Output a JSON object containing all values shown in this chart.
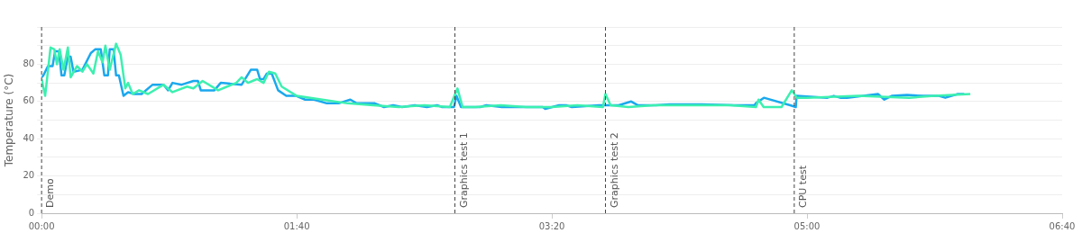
{
  "chart_data": {
    "type": "line",
    "ylabel": "Temperature (°C)",
    "xlim": [
      0,
      400
    ],
    "xticks": [
      {
        "value": 0,
        "label": "00:00"
      },
      {
        "value": 100,
        "label": "01:40"
      },
      {
        "value": 200,
        "label": "03:20"
      },
      {
        "value": 300,
        "label": "05:00"
      },
      {
        "value": 400,
        "label": "06:40"
      }
    ],
    "ylim": [
      0,
      100
    ],
    "yticks": [
      0,
      {
        "value": 10,
        "label": null
      },
      20,
      {
        "value": 30,
        "label": null
      },
      40,
      {
        "value": 50,
        "label": null
      },
      60,
      {
        "value": 70,
        "label": null
      },
      80,
      {
        "value": 90,
        "label": null
      },
      {
        "value": 100,
        "label": null
      }
    ],
    "grid": "y",
    "legend": false,
    "marker": "none",
    "line_style": "solid",
    "series": [
      {
        "color": "#3cf0b0",
        "x": [
          0,
          1.4,
          3.5,
          5,
          6,
          7.1,
          8.6,
          10.3,
          11.4,
          13.9,
          16,
          17.8,
          20.3,
          22.1,
          23.9,
          25,
          26.7,
          29.2,
          31,
          32.8,
          33.9,
          35.7,
          38.2,
          41.7,
          47.8,
          51.3,
          57,
          59.5,
          63.1,
          69.2,
          72.7,
          76.3,
          78.4,
          80.9,
          82.7,
          84.5,
          87,
          89.1,
          91.6,
          94.1,
          100,
          110,
          120,
          130,
          140,
          150,
          160,
          163,
          165,
          170,
          180,
          190,
          200,
          210,
          220,
          221,
          223,
          230,
          240,
          250,
          260,
          270,
          280,
          281,
          283,
          290,
          294,
          296,
          300,
          320,
          340,
          350,
          364
        ],
        "values": [
          72,
          63,
          89,
          88,
          80,
          88,
          77,
          89,
          73,
          79,
          76,
          80,
          75,
          87,
          81,
          90,
          77,
          91,
          85,
          67,
          70,
          64,
          66,
          64,
          69,
          65,
          68,
          67,
          71,
          66,
          68,
          70,
          73,
          70,
          71,
          72,
          70,
          76,
          75,
          68,
          63,
          61,
          59,
          58,
          57,
          58,
          57,
          67,
          57,
          57,
          58,
          57,
          57,
          58,
          57,
          64,
          58,
          57,
          58,
          58,
          58,
          58,
          57,
          61,
          57,
          57,
          66,
          62,
          62,
          63,
          62,
          63,
          64
        ]
      },
      {
        "color": "#1aa8ee",
        "x": [
          0,
          0.7,
          2.5,
          4.3,
          5.3,
          6.8,
          7.8,
          8.9,
          10.3,
          11.4,
          12.5,
          16,
          19.3,
          21,
          23.2,
          24.6,
          26,
          26.7,
          28.2,
          29.2,
          30.3,
          32.1,
          33.9,
          36.4,
          39.2,
          43.5,
          47.8,
          49.6,
          51.3,
          54.9,
          59.5,
          61.3,
          62.4,
          67.7,
          70.2,
          78.4,
          82,
          84.5,
          85.6,
          87,
          88.3,
          90.2,
          92.7,
          95.9,
          99.8,
          103.3,
          106.8,
          111.8,
          116.4,
          121,
          123.5,
          130.6,
          134.2,
          137.8,
          141.3,
          146.3,
          151,
          155,
          157,
          161.6,
          162.6,
          164.4,
          171.9,
          174.3,
          180.4,
          196.4,
          197.4,
          202.8,
          205.6,
          207.8,
          218.5,
          226.2,
          231.1,
          233.6,
          240.7,
          246,
          258.9,
          271.7,
          279.5,
          279.9,
          283.1,
          293.4,
          295.6,
          295.9,
          308,
          310.5,
          313,
          315.7,
          327.8,
          330.3,
          333.2,
          339.2,
          345.6,
          351.7,
          354.2,
          359.1,
          361.6
        ],
        "values": [
          73,
          74,
          79,
          79,
          87,
          87,
          74,
          74,
          84,
          84,
          76,
          77,
          86,
          88,
          88,
          74,
          74,
          88,
          88,
          74,
          74,
          63,
          65,
          64,
          64,
          69,
          69,
          66,
          70,
          69,
          71,
          71,
          66,
          66,
          70,
          69,
          77,
          77,
          72,
          72,
          75,
          75,
          66,
          63,
          63,
          61,
          61,
          59,
          59,
          61,
          59,
          59,
          57,
          58,
          57,
          58,
          57,
          58,
          57,
          57,
          63,
          57,
          57,
          58,
          57,
          57,
          56,
          58,
          58,
          57,
          58,
          58,
          60,
          58,
          58,
          58.5,
          58.5,
          58,
          58,
          59,
          62,
          58,
          57,
          63,
          62,
          63,
          62,
          62,
          64,
          61,
          63,
          63.5,
          63,
          63,
          62,
          64,
          64
        ]
      }
    ],
    "ref_lines": [
      {
        "axis": "x",
        "value": 0,
        "label": "Demo",
        "line_style": "dashed"
      },
      {
        "axis": "x",
        "value": 162,
        "label": "Graphics test 1",
        "line_style": "dashed"
      },
      {
        "axis": "x",
        "value": 221,
        "label": "Graphics test 2",
        "line_style": "dashed"
      },
      {
        "axis": "x",
        "value": 295,
        "label": "CPU test",
        "line_style": "dashed"
      }
    ]
  }
}
